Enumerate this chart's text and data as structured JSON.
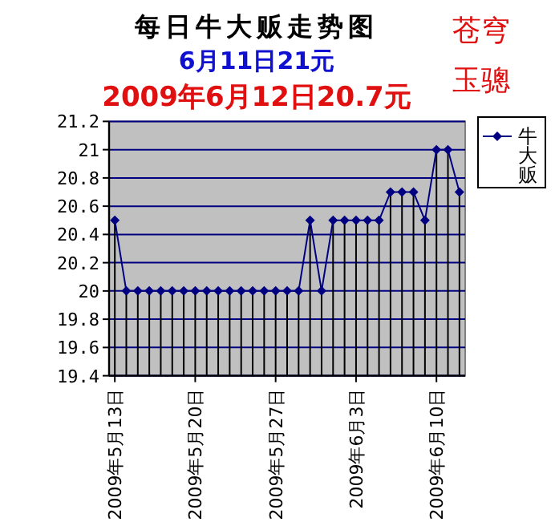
{
  "chart_data": {
    "type": "line",
    "title": "每日牛大贩走势图",
    "subtitle": "6月11日21元",
    "annotations": [
      "2009年6月12日20.7元",
      "苍穹",
      "玉骢"
    ],
    "x": [
      "2009-05-13",
      "2009-05-14",
      "2009-05-15",
      "2009-05-16",
      "2009-05-17",
      "2009-05-18",
      "2009-05-19",
      "2009-05-20",
      "2009-05-21",
      "2009-05-22",
      "2009-05-23",
      "2009-05-24",
      "2009-05-25",
      "2009-05-26",
      "2009-05-27",
      "2009-05-28",
      "2009-05-29",
      "2009-05-30",
      "2009-05-31",
      "2009-06-01",
      "2009-06-02",
      "2009-06-03",
      "2009-06-04",
      "2009-06-05",
      "2009-06-06",
      "2009-06-07",
      "2009-06-08",
      "2009-06-09",
      "2009-06-10",
      "2009-06-11",
      "2009-06-12"
    ],
    "series": [
      {
        "name": "牛大贩",
        "color": "#000080",
        "values": [
          20.5,
          20,
          20,
          20,
          20,
          20,
          20,
          20,
          20,
          20,
          20,
          20,
          20,
          20,
          20,
          20,
          20,
          20.5,
          20,
          20.5,
          20.5,
          20.5,
          20.5,
          20.5,
          20.7,
          20.7,
          20.7,
          20.5,
          21,
          21,
          20.7
        ]
      },
      {
        "type": "lollipop",
        "color": "#000080",
        "marker": "diamond",
        "values": [
          20.5,
          20,
          20,
          20,
          20,
          20,
          20,
          20,
          20,
          20,
          20,
          20,
          20,
          20,
          20,
          20,
          20,
          20.5,
          20,
          20.5,
          20.5,
          20.5,
          20.5,
          20.5,
          20.7,
          20.7,
          20.7,
          20.5,
          21,
          21,
          20.7
        ]
      }
    ],
    "xlim": [
      "2009-05-12T12:00",
      "2009-06-12T12:00"
    ],
    "xticks": [
      {
        "value": "2009-05-13",
        "label": "2009年5月13日"
      },
      {
        "value": "2009-05-20",
        "label": "2009年5月20日"
      },
      {
        "value": "2009-05-27",
        "label": "2009年5月27日"
      },
      {
        "value": "2009-06-03",
        "label": "2009年6月3日"
      },
      {
        "value": "2009-06-10",
        "label": "2009年6月10日"
      }
    ],
    "ylim": [
      19.4,
      21.2
    ],
    "yticks": [
      {
        "value": 19.4,
        "label": "19.4"
      },
      {
        "value": 19.6,
        "label": "19.6"
      },
      {
        "value": 19.8,
        "label": "19.8"
      },
      {
        "value": 20,
        "label": "20"
      },
      {
        "value": 20.2,
        "label": "20.2"
      },
      {
        "value": 20.4,
        "label": "20.4"
      },
      {
        "value": 20.6,
        "label": "20.6"
      },
      {
        "value": 20.8,
        "label": "20.8"
      },
      {
        "value": 21,
        "label": "21"
      },
      {
        "value": 21.2,
        "label": "21.2"
      }
    ],
    "grid": "y",
    "legend": "right",
    "line_style": "solid"
  }
}
